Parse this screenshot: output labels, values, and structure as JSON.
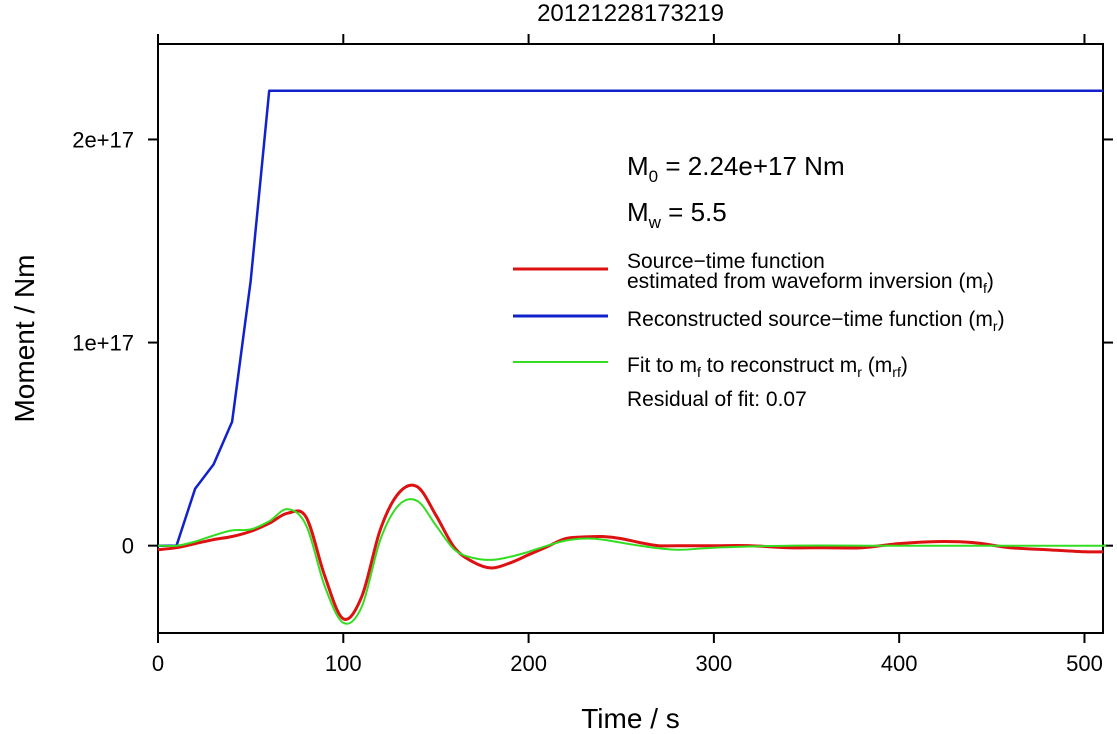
{
  "chart_data": {
    "type": "line",
    "title": "20121228173219",
    "xlabel": "Time / s",
    "ylabel": "Moment / Nm",
    "xlim": [
      0,
      510
    ],
    "ylim": [
      -4.3e+16,
      2.47e+17
    ],
    "x_ticks": [
      0,
      100,
      200,
      300,
      400,
      500
    ],
    "x_tick_labels": [
      "0",
      "100",
      "200",
      "300",
      "400",
      "500"
    ],
    "y_ticks": [
      0,
      1e+17,
      2e+17
    ],
    "y_tick_labels": [
      "0",
      "1e+17",
      "2e+17"
    ],
    "grid": false,
    "legend_position": "right",
    "annotations": {
      "m0": {
        "symbol": "M",
        "sub": "0",
        "text": " = 2.24e+17 Nm"
      },
      "mw": {
        "symbol": "M",
        "sub": "w",
        "text": " = 5.5"
      },
      "residual": "Residual of fit: 0.07"
    },
    "series": [
      {
        "legend_line1": "Source−time function",
        "legend_line2": "estimated from waveform inversion (m",
        "legend_sub": "f",
        "legend_tail": ")",
        "color": "#dd1111",
        "x": [
          0,
          10,
          20,
          30,
          40,
          50,
          60,
          70,
          80,
          90,
          100,
          110,
          120,
          130,
          140,
          150,
          160,
          170,
          180,
          190,
          200,
          210,
          220,
          230,
          240,
          250,
          260,
          270,
          280,
          300,
          320,
          340,
          360,
          380,
          400,
          420,
          440,
          460,
          480,
          500,
          510
        ],
        "y": [
          -2000000000000000.0,
          -1000000000000000.0,
          1000000000000000.0,
          3000000000000000.0,
          4500000000000000.0,
          7000000000000000.0,
          1.1e+16,
          1.6e+16,
          1.4e+16,
          -1.5e+16,
          -3.6e+16,
          -2.5e+16,
          8000000000000000.0,
          2.6e+16,
          2.9e+16,
          1.5e+16,
          -1000000000000000.0,
          -8000000000000000.0,
          -1.1e+16,
          -8500000000000000.0,
          -4500000000000000.0,
          -500000000000000.0,
          3500000000000000.0,
          4300000000000000.0,
          4500000000000000.0,
          3500000000000000.0,
          1500000000000000.0,
          0,
          0,
          0,
          0,
          -1000000000000000.0,
          -1000000000000000.0,
          -1000000000000000.0,
          1000000000000000.0,
          2000000000000000.0,
          1500000000000000.0,
          -1000000000000000.0,
          -2000000000000000.0,
          -3000000000000000.0,
          -3000000000000000.0
        ]
      },
      {
        "legend_line1": "Reconstructed source−time function (m",
        "legend_line2": "",
        "legend_sub": "r",
        "legend_tail": ")",
        "color": "#1122cc",
        "x": [
          0,
          10,
          20,
          30,
          40,
          50,
          60,
          510
        ],
        "y": [
          0,
          0,
          2.8e+16,
          4e+16,
          6.1e+16,
          1.3e+17,
          2.24e+17,
          2.24e+17
        ]
      },
      {
        "legend_line1": "Fit to m",
        "legend_line1_sub": "f",
        "legend_line1_mid": " to reconstruct m",
        "legend_line1_sub2": "r",
        "legend_line1_tail": " (m",
        "legend_sub": "rf",
        "legend_tail": ")",
        "legend_line2": "",
        "color": "#33dd22",
        "x": [
          0,
          10,
          20,
          30,
          40,
          50,
          60,
          70,
          80,
          90,
          100,
          110,
          120,
          130,
          140,
          150,
          160,
          170,
          180,
          190,
          200,
          210,
          220,
          230,
          240,
          260,
          280,
          300,
          340,
          400,
          500,
          510
        ],
        "y": [
          0,
          0,
          2000000000000000.0,
          5000000000000000.0,
          7500000000000000.0,
          8000000000000000.0,
          1.2e+16,
          1.8e+16,
          1e+16,
          -2e+16,
          -3.8e+16,
          -3e+16,
          3000000000000000.0,
          2e+16,
          2.2e+16,
          1e+16,
          -2000000000000000.0,
          -6000000000000000.0,
          -7000000000000000.0,
          -5500000000000000.0,
          -3000000000000000.0,
          0,
          2500000000000000.0,
          3500000000000000.0,
          3000000000000000.0,
          0,
          -2000000000000000.0,
          -1000000000000000.0,
          0,
          0,
          0,
          0
        ]
      }
    ]
  }
}
